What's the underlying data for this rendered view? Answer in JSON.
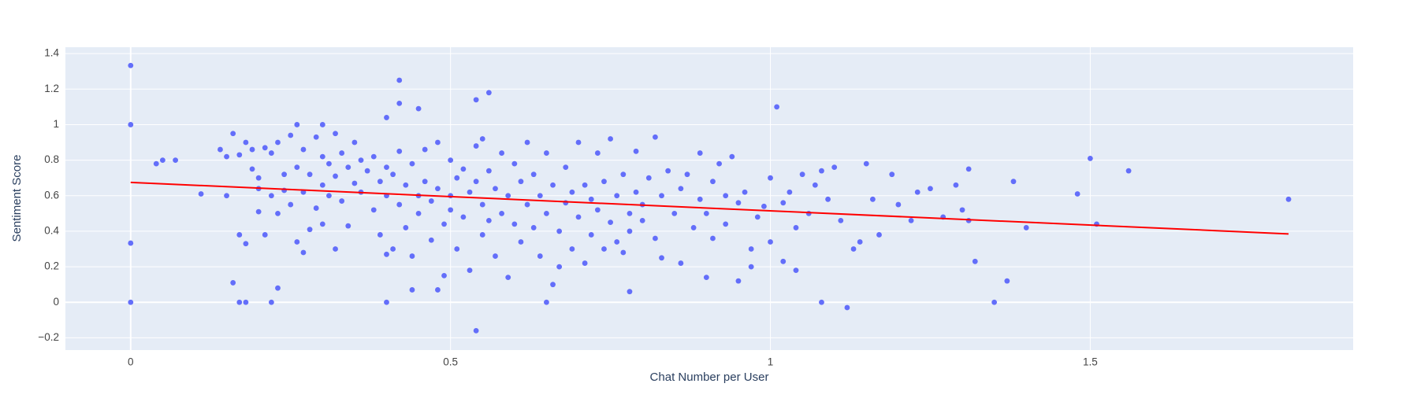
{
  "chart_data": {
    "type": "scatter",
    "x_label": "Chat Number per User",
    "y_label": "Sentiment Score",
    "xlim": [
      -0.102,
      1.911
    ],
    "ylim": [
      -0.269,
      1.436
    ],
    "xticks": [
      0,
      0.5,
      1,
      1.5
    ],
    "yticks": [
      {
        "value": -0.2,
        "label": "−0.2"
      },
      0,
      0.2,
      0.4,
      0.6,
      0.8,
      1,
      1.2,
      1.4
    ],
    "grid": true,
    "background": "#e5ecf6",
    "series": [
      {
        "mode": "markers",
        "color": "#636efa",
        "x": [
          0,
          0,
          0,
          0,
          0.04,
          0.05,
          0.07,
          0.11,
          0.14,
          0.15,
          0.15,
          0.16,
          0.17,
          0.18,
          0.17,
          0.18,
          0.16,
          0.2,
          0.21,
          0.22,
          0.23,
          0.26,
          0.3,
          0.4,
          0.4,
          0.42,
          0.42,
          0.45,
          0.44,
          0.48,
          0.54,
          0.54,
          0.56,
          0.65,
          0.78,
          0.82,
          1.01,
          1.08,
          1.12,
          1.32,
          1.35,
          1.37,
          1.38,
          1.4,
          1.48,
          1.5,
          1.51,
          1.56,
          1.81,
          0.95,
          0.97,
          1.04,
          0.9,
          0.17,
          0.18,
          0.19,
          0.19,
          0.2,
          0.2,
          0.21,
          0.22,
          0.22,
          0.23,
          0.23,
          0.24,
          0.24,
          0.25,
          0.25,
          0.26,
          0.26,
          0.27,
          0.27,
          0.27,
          0.28,
          0.28,
          0.29,
          0.29,
          0.3,
          0.3,
          0.3,
          0.31,
          0.31,
          0.32,
          0.32,
          0.32,
          0.33,
          0.33,
          0.34,
          0.34,
          0.35,
          0.35,
          0.36,
          0.36,
          0.37,
          0.38,
          0.38,
          0.39,
          0.39,
          0.4,
          0.4,
          0.4,
          0.41,
          0.41,
          0.42,
          0.42,
          0.43,
          0.43,
          0.44,
          0.44,
          0.45,
          0.45,
          0.46,
          0.46,
          0.47,
          0.47,
          0.48,
          0.48,
          0.49,
          0.49,
          0.5,
          0.5,
          0.5,
          0.51,
          0.51,
          0.52,
          0.52,
          0.53,
          0.53,
          0.54,
          0.54,
          0.55,
          0.55,
          0.55,
          0.56,
          0.56,
          0.57,
          0.57,
          0.58,
          0.58,
          0.59,
          0.59,
          0.6,
          0.6,
          0.61,
          0.61,
          0.62,
          0.62,
          0.63,
          0.63,
          0.64,
          0.64,
          0.65,
          0.65,
          0.66,
          0.66,
          0.67,
          0.67,
          0.68,
          0.68,
          0.69,
          0.69,
          0.7,
          0.7,
          0.71,
          0.71,
          0.72,
          0.72,
          0.73,
          0.73,
          0.74,
          0.74,
          0.75,
          0.75,
          0.76,
          0.76,
          0.77,
          0.77,
          0.78,
          0.78,
          0.79,
          0.79,
          0.8,
          0.8,
          0.81,
          0.82,
          0.83,
          0.83,
          0.84,
          0.85,
          0.86,
          0.86,
          0.87,
          0.88,
          0.89,
          0.89,
          0.9,
          0.91,
          0.91,
          0.92,
          0.93,
          0.93,
          0.94,
          0.95,
          0.96,
          0.97,
          0.98,
          0.99,
          1.0,
          1.0,
          1.02,
          1.02,
          1.03,
          1.04,
          1.05,
          1.06,
          1.07,
          1.08,
          1.09,
          1.1,
          1.11,
          1.13,
          1.14,
          1.15,
          1.16,
          1.17,
          1.19,
          1.2,
          1.22,
          1.23,
          1.25,
          1.27,
          1.29,
          1.3,
          1.31,
          1.31
        ],
        "values": [
          1.333,
          1,
          0.333,
          0,
          0.78,
          0.8,
          0.8,
          0.61,
          0.86,
          0.82,
          0.6,
          0.11,
          0,
          0,
          0.38,
          0.33,
          0.95,
          0.64,
          0.38,
          0,
          0.08,
          1.0,
          1.0,
          1.04,
          0,
          1.25,
          1.12,
          1.09,
          0.07,
          0.07,
          -0.16,
          1.14,
          1.18,
          0,
          0.06,
          0.93,
          1.1,
          0,
          -0.03,
          0.23,
          0,
          0.12,
          0.68,
          0.42,
          0.61,
          0.81,
          0.44,
          0.74,
          0.58,
          0.12,
          0.2,
          0.18,
          0.14,
          0.83,
          0.9,
          0.75,
          0.86,
          0.7,
          0.51,
          0.87,
          0.84,
          0.6,
          0.9,
          0.5,
          0.72,
          0.63,
          0.94,
          0.55,
          0.76,
          0.34,
          0.86,
          0.62,
          0.28,
          0.72,
          0.41,
          0.93,
          0.53,
          0.82,
          0.66,
          0.44,
          0.78,
          0.6,
          0.95,
          0.71,
          0.3,
          0.84,
          0.57,
          0.76,
          0.43,
          0.9,
          0.67,
          0.8,
          0.62,
          0.74,
          0.82,
          0.52,
          0.68,
          0.38,
          0.76,
          0.6,
          0.27,
          0.72,
          0.3,
          0.85,
          0.55,
          0.66,
          0.42,
          0.78,
          0.26,
          0.6,
          0.5,
          0.86,
          0.68,
          0.57,
          0.35,
          0.9,
          0.64,
          0.44,
          0.15,
          0.8,
          0.6,
          0.52,
          0.7,
          0.3,
          0.75,
          0.48,
          0.62,
          0.18,
          0.88,
          0.68,
          0.92,
          0.55,
          0.38,
          0.74,
          0.46,
          0.64,
          0.26,
          0.84,
          0.5,
          0.6,
          0.14,
          0.78,
          0.44,
          0.68,
          0.34,
          0.9,
          0.55,
          0.72,
          0.42,
          0.6,
          0.26,
          0.84,
          0.5,
          0.1,
          0.66,
          0.4,
          0.2,
          0.76,
          0.56,
          0.62,
          0.3,
          0.9,
          0.48,
          0.66,
          0.22,
          0.58,
          0.38,
          0.84,
          0.52,
          0.68,
          0.3,
          0.92,
          0.45,
          0.6,
          0.34,
          0.72,
          0.28,
          0.5,
          0.4,
          0.85,
          0.62,
          0.46,
          0.55,
          0.7,
          0.36,
          0.6,
          0.25,
          0.74,
          0.5,
          0.64,
          0.22,
          0.72,
          0.42,
          0.84,
          0.58,
          0.5,
          0.68,
          0.36,
          0.78,
          0.6,
          0.44,
          0.82,
          0.56,
          0.62,
          0.3,
          0.48,
          0.54,
          0.7,
          0.34,
          0.56,
          0.23,
          0.62,
          0.42,
          0.72,
          0.5,
          0.66,
          0.74,
          0.58,
          0.76,
          0.46,
          0.3,
          0.34,
          0.78,
          0.58,
          0.38,
          0.72,
          0.55,
          0.46,
          0.62,
          0.64,
          0.48,
          0.66,
          0.52,
          0.75,
          0.46
        ]
      },
      {
        "mode": "lines",
        "color": "#ff0000",
        "x": [
          0,
          1.81
        ],
        "values": [
          0.675,
          0.385
        ]
      }
    ]
  }
}
